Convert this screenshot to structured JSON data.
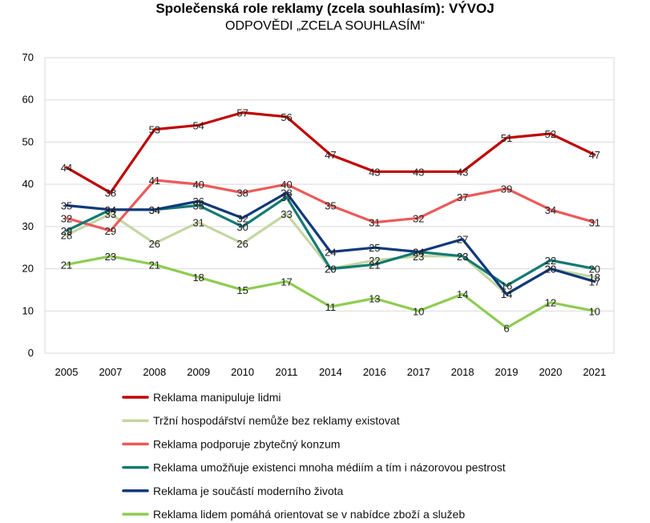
{
  "chart_data": {
    "type": "line",
    "title": "Společenská role reklamy (zcela souhlasím): VÝVOJ",
    "subtitle": "ODPOVĚDI „ZCELA SOUHLASÍM“",
    "categories": [
      "2005",
      "2007",
      "2008",
      "2009",
      "2010",
      "2011",
      "2014",
      "2016",
      "2017",
      "2018",
      "2019",
      "2020",
      "2021"
    ],
    "ylim": [
      0,
      70
    ],
    "yticks": [
      0,
      10,
      20,
      30,
      40,
      50,
      60,
      70
    ],
    "grid": true,
    "legend_position": "bottom",
    "series": [
      {
        "name": "Reklama manipuluje lidmi",
        "color": "#c00000",
        "values": [
          44,
          38,
          53,
          54,
          57,
          56,
          47,
          43,
          43,
          43,
          51,
          52,
          47
        ]
      },
      {
        "name": "Tržní hospodářství nemůže bez reklamy existovat",
        "color": "#c4d7a4",
        "values": [
          28,
          33,
          26,
          31,
          26,
          33,
          20,
          22,
          23,
          23,
          14,
          20,
          18
        ]
      },
      {
        "name": "Reklama podporuje zbytečný konzum",
        "color": "#ec5a5a",
        "values": [
          32,
          29,
          41,
          40,
          38,
          40,
          35,
          31,
          32,
          37,
          39,
          34,
          31
        ]
      },
      {
        "name": "Reklama umožňuje existenci mnoha médiím a tím i názorovou pestrost",
        "color": "#147a72",
        "values": [
          29,
          34,
          34,
          35,
          30,
          37,
          20,
          21,
          24,
          23,
          16,
          22,
          20
        ]
      },
      {
        "name": "Reklama je součástí moderního života",
        "color": "#10397a",
        "values": [
          35,
          34,
          34,
          36,
          32,
          38,
          24,
          25,
          24,
          27,
          14,
          20,
          17
        ]
      },
      {
        "name": "Reklama lidem pomáhá orientovat se v nabídce zboží a služeb",
        "color": "#8fcc52",
        "values": [
          21,
          23,
          21,
          18,
          15,
          17,
          11,
          13,
          10,
          14,
          6,
          12,
          10
        ]
      }
    ]
  }
}
